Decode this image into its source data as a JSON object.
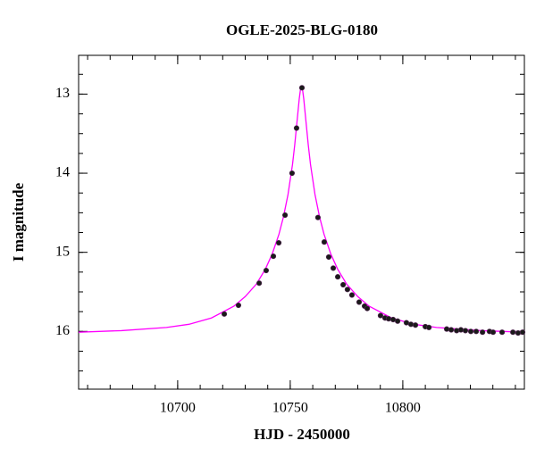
{
  "chart_data": {
    "type": "scatter",
    "title": "OGLE-2025-BLG-0180",
    "xlabel": "HJD - 2450000",
    "ylabel": "I magnitude",
    "xlim": [
      10656,
      10854
    ],
    "ylim": [
      16.73,
      12.51
    ],
    "xticks": [
      10700,
      10750,
      10800
    ],
    "yticks": [
      13,
      14,
      15,
      16
    ],
    "series": [
      {
        "type": "line",
        "color": "#ff00ff",
        "x": [
          10656,
          10675,
          10695,
          10705,
          10715,
          10725,
          10730,
          10735,
          10739,
          10742,
          10745,
          10747,
          10749,
          10751,
          10752,
          10753,
          10754,
          10754.5,
          10755,
          10755.5,
          10756,
          10757,
          10758,
          10759,
          10761,
          10763,
          10765,
          10768,
          10771,
          10775,
          10780,
          10785,
          10795,
          10805,
          10815,
          10835,
          10854
        ],
        "values": [
          16.01,
          15.99,
          15.95,
          15.91,
          15.83,
          15.68,
          15.56,
          15.4,
          15.21,
          15.02,
          14.77,
          14.55,
          14.27,
          13.89,
          13.64,
          13.35,
          13.06,
          12.95,
          12.91,
          12.95,
          13.06,
          13.35,
          13.64,
          13.89,
          14.27,
          14.55,
          14.77,
          15.02,
          15.21,
          15.4,
          15.56,
          15.68,
          15.83,
          15.91,
          15.95,
          15.99,
          16.01
        ]
      },
      {
        "type": "scatter",
        "color": "#1a1a1a",
        "x": [
          10720.7,
          10727.0,
          10736.2,
          10739.3,
          10742.5,
          10744.9,
          10747.7,
          10750.8,
          10752.8,
          10755.2,
          10762.3,
          10765.1,
          10767.1,
          10769.1,
          10771.1,
          10773.5,
          10775.4,
          10777.4,
          10780.6,
          10783.0,
          10784.2,
          10790.1,
          10792.1,
          10793.7,
          10795.7,
          10797.7,
          10801.6,
          10803.6,
          10805.6,
          10810.0,
          10811.6,
          10819.5,
          10821.5,
          10823.9,
          10825.8,
          10827.8,
          10830.2,
          10832.6,
          10835.4,
          10838.5,
          10840.1,
          10844.1,
          10848.9,
          10851.2,
          10853.2
        ],
        "values": [
          15.78,
          15.67,
          15.39,
          15.23,
          15.05,
          14.88,
          14.53,
          14.0,
          13.43,
          12.92,
          14.56,
          14.87,
          15.06,
          15.2,
          15.31,
          15.41,
          15.47,
          15.54,
          15.63,
          15.68,
          15.71,
          15.8,
          15.83,
          15.84,
          15.85,
          15.87,
          15.89,
          15.91,
          15.92,
          15.94,
          15.95,
          15.97,
          15.98,
          15.99,
          15.98,
          15.99,
          16.0,
          16.0,
          16.01,
          16.0,
          16.01,
          16.01,
          16.01,
          16.02,
          16.01
        ]
      }
    ]
  }
}
